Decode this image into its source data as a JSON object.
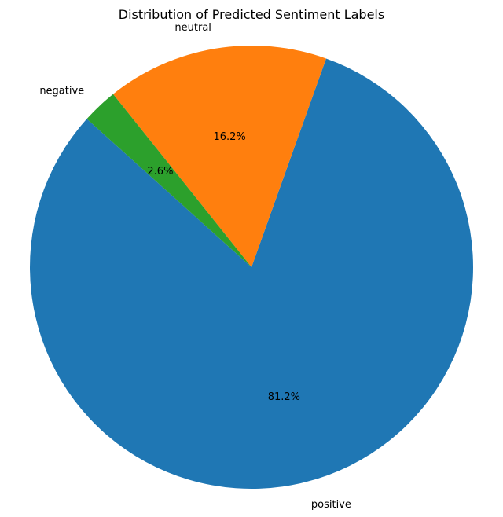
{
  "chart_data": {
    "type": "pie",
    "title": "Distribution of Predicted Sentiment Labels",
    "labels": [
      "positive",
      "neutral",
      "negative"
    ],
    "values": [
      81.2,
      16.2,
      2.6
    ],
    "percent_labels": [
      "81.2%",
      "16.2%",
      "2.6%"
    ],
    "colors": [
      "#1f77b4",
      "#ff7f0e",
      "#2ca02c"
    ],
    "start_angle_deg": 138,
    "direction": "counterclockwise",
    "legend": "none"
  }
}
